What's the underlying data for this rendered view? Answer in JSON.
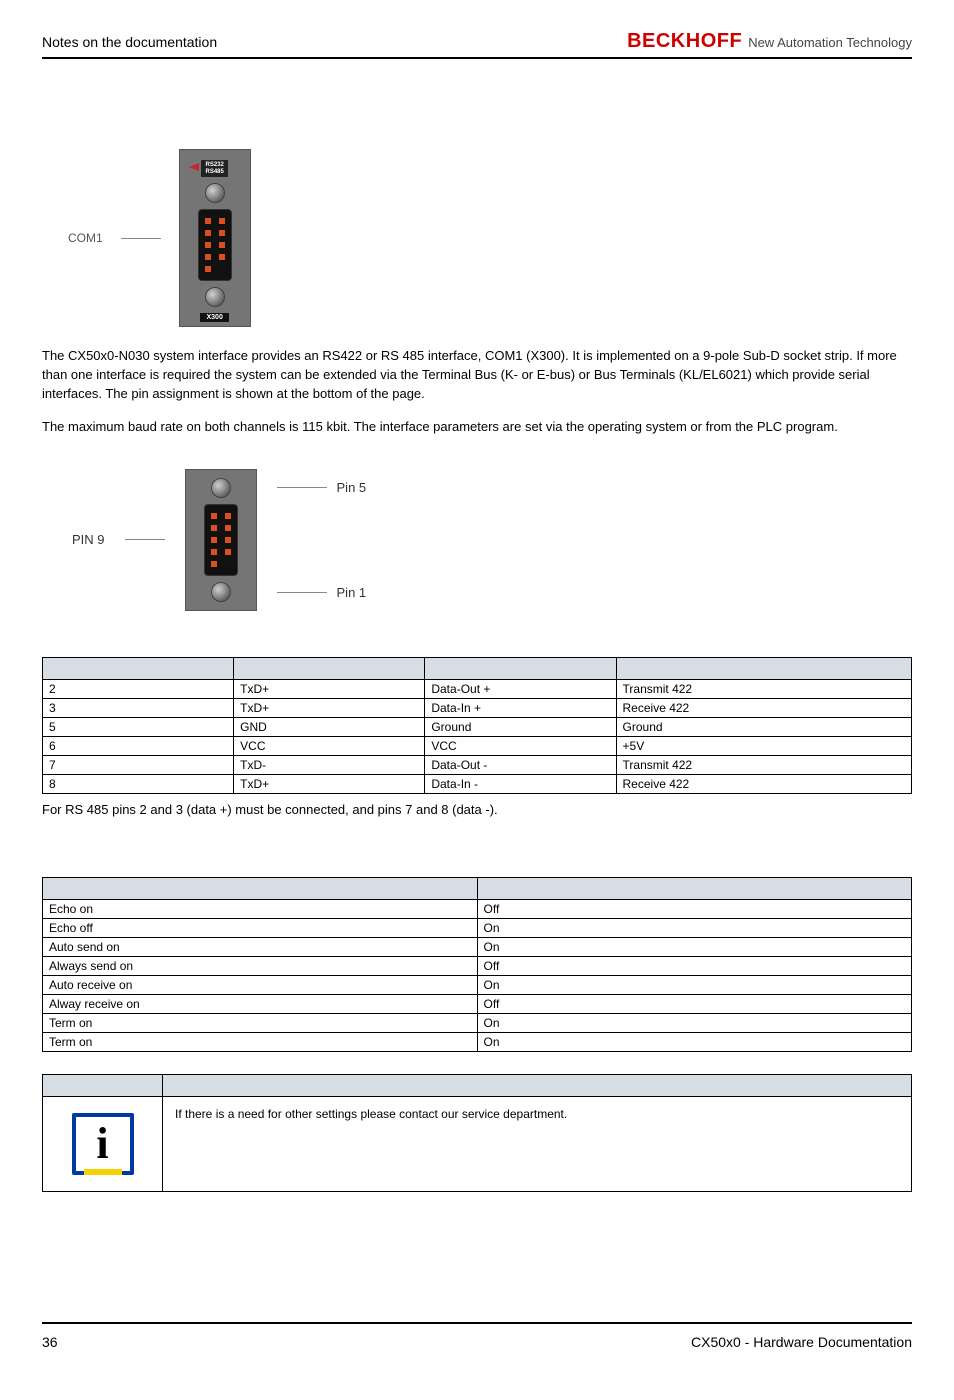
{
  "header": {
    "section_title": "Notes on the documentation",
    "brand": "BECKHOFF",
    "tagline": "New Automation Technology"
  },
  "com1_figure": {
    "side_label": "COM1",
    "top_tag_line1": "RS232",
    "top_tag_line2": "RS485",
    "bottom_tag": "X300",
    "colors": {
      "shell": "#757575",
      "pin": "#d94f1f",
      "tag_bg": "#222222",
      "tag_text": "#ffffff"
    }
  },
  "paragraph1": "The CX50x0-N030 system interface provides an RS422 or RS 485 interface, COM1 (X300). It is implemented on a 9-pole Sub-D socket strip. If more than one interface is required the system can be extended via the Terminal Bus (K- or E-bus) or Bus Terminals (KL/EL6021) which provide serial interfaces. The pin assignment is shown at the bottom of the page.",
  "paragraph2": "The maximum baud rate on both channels is 115 kbit. The interface parameters are set via the operating system or from the PLC program.",
  "pinout_figure": {
    "left_label": "PIN 9",
    "right_top": "Pin 5",
    "right_bottom": "Pin 1"
  },
  "pin_table": {
    "rows": [
      [
        "2",
        "TxD+",
        "Data-Out +",
        "Transmit 422"
      ],
      [
        "3",
        "TxD+",
        "Data-In +",
        "Receive 422"
      ],
      [
        "5",
        "GND",
        "Ground",
        "Ground"
      ],
      [
        "6",
        "VCC",
        "VCC",
        "+5V"
      ],
      [
        "7",
        "TxD-",
        "Data-Out -",
        "Transmit 422"
      ],
      [
        "8",
        "TxD+",
        "Data-In -",
        "Receive 422"
      ]
    ]
  },
  "rs485_note": "For RS 485 pins 2 and 3 (data +) must be connected, and pins 7 and 8 (data -).",
  "func_table": {
    "rows": [
      [
        "Echo on",
        "Off"
      ],
      [
        "Echo off",
        "On"
      ],
      [
        "Auto send on",
        "On"
      ],
      [
        "Always send on",
        "Off"
      ],
      [
        "Auto receive on",
        "On"
      ],
      [
        "Alway receive on",
        "Off"
      ],
      [
        "Term on",
        "On"
      ],
      [
        "Term on",
        "On"
      ]
    ]
  },
  "note_box": {
    "text": "If there is a need for other settings please contact our service department.",
    "border_color": "#003a9e",
    "accent_color": "#f7d100"
  },
  "footer": {
    "page_number": "36",
    "doc_title": "CX50x0 - Hardware Documentation"
  }
}
